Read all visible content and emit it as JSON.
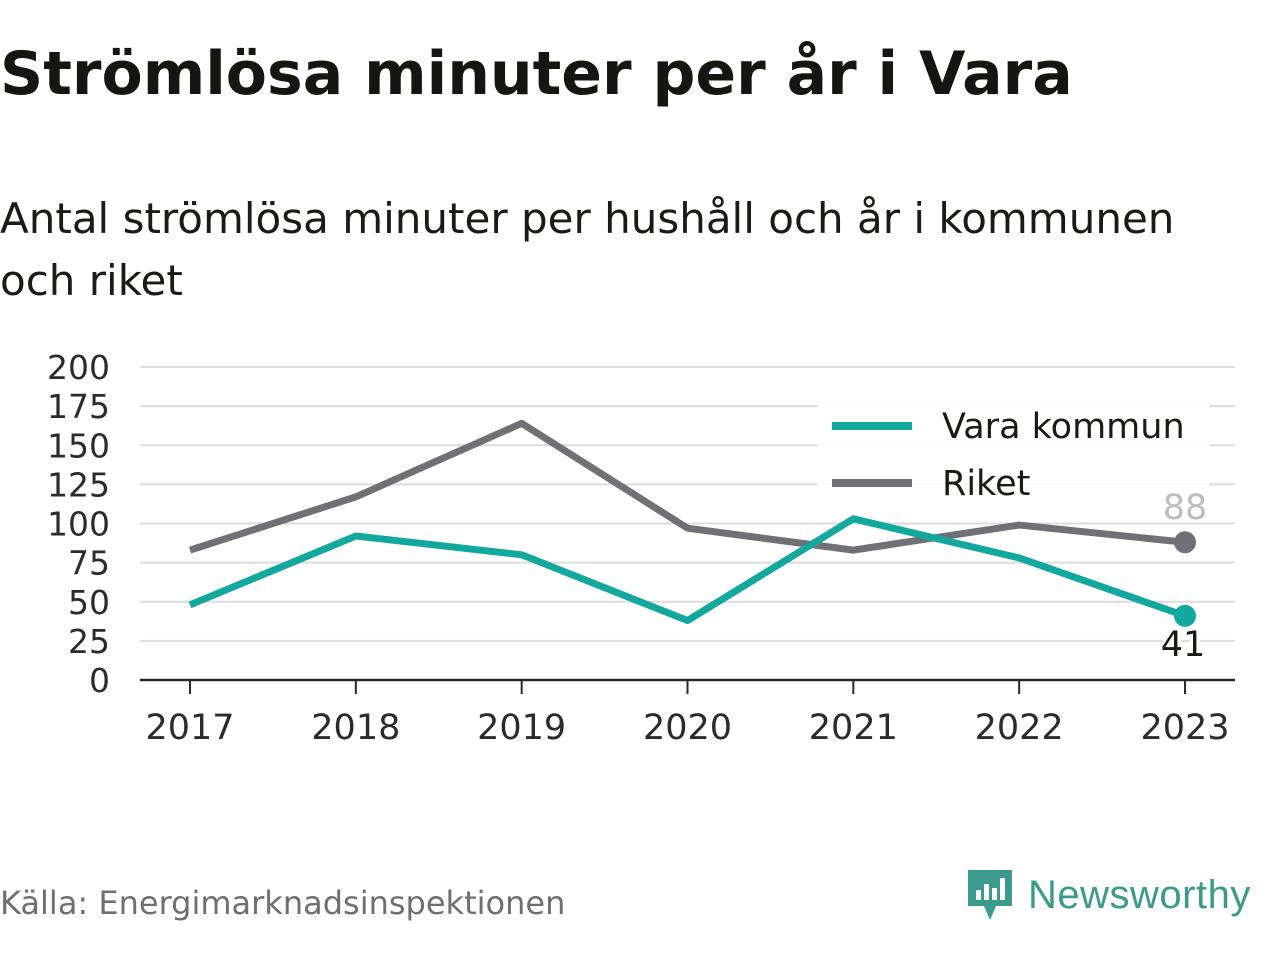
{
  "title": "Strömlösa minuter per år i Vara",
  "subtitle": "Antal strömlösa minuter per hushåll och år i kommunen och riket",
  "source": "Källa: Energimarknadsinspektionen",
  "brand": {
    "name": "Newsworthy",
    "icon": "newsworthy-logo-icon",
    "color": "#3b9a8b"
  },
  "chart_data": {
    "type": "line",
    "x": [
      "2017",
      "2018",
      "2019",
      "2020",
      "2021",
      "2022",
      "2023"
    ],
    "yticks": [
      "0",
      "25",
      "50",
      "75",
      "100",
      "125",
      "150",
      "175",
      "200"
    ],
    "ylim": [
      0,
      200
    ],
    "grid": true,
    "legend_position": "top-right",
    "series": [
      {
        "name": "Vara kommun",
        "color": "#13a89e",
        "values": [
          48,
          92,
          80,
          38,
          103,
          78,
          41
        ],
        "end_label": "41"
      },
      {
        "name": "Riket",
        "color": "#727077",
        "values": [
          83,
          117,
          164,
          97,
          83,
          99,
          88
        ],
        "end_label": "88"
      }
    ]
  }
}
